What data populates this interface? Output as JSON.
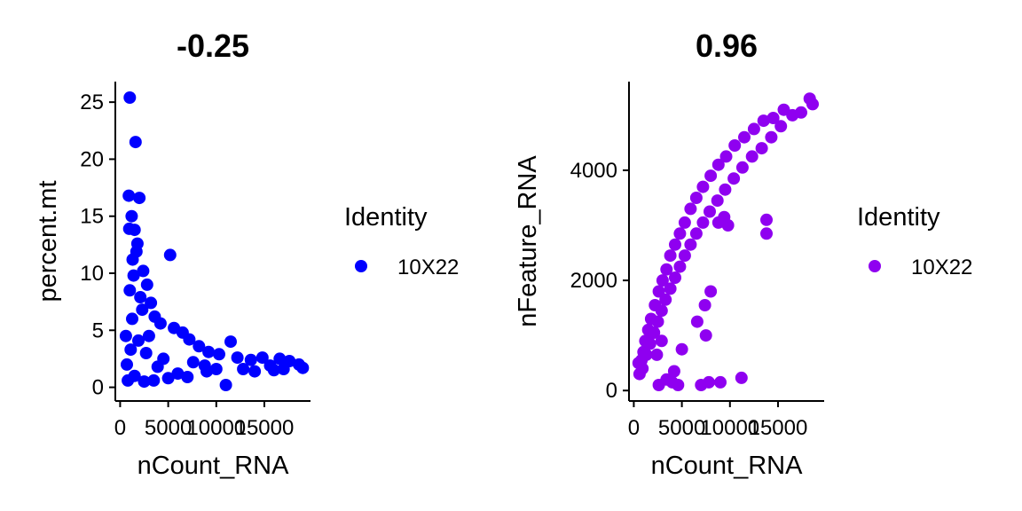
{
  "chart_data": [
    {
      "type": "scatter",
      "title": "-0.25",
      "xlabel": "nCount_RNA",
      "ylabel": "percent.mt",
      "xlim": [
        -500,
        19800
      ],
      "ylim": [
        -1.2,
        26.8
      ],
      "xticks": [
        0,
        5000,
        10000,
        15000
      ],
      "xtick_labels": [
        "0",
        "5000",
        "10000",
        "15000"
      ],
      "yticks": [
        0,
        5,
        10,
        15,
        20,
        25
      ],
      "ytick_labels": [
        "0",
        "5",
        "10",
        "15",
        "20",
        "25"
      ],
      "grid": false,
      "legend": {
        "title": "Identity",
        "placement": "right",
        "entries": [
          "10X22"
        ]
      },
      "series": [
        {
          "name": "10X22",
          "color": "#0000ff",
          "points": [
            [
              1000,
              25.4
            ],
            [
              1600,
              21.5
            ],
            [
              900,
              16.8
            ],
            [
              2000,
              16.6
            ],
            [
              1200,
              15.0
            ],
            [
              1500,
              13.8
            ],
            [
              1800,
              12.6
            ],
            [
              5200,
              11.6
            ],
            [
              1300,
              11.2
            ],
            [
              2400,
              10.2
            ],
            [
              2800,
              9.0
            ],
            [
              1000,
              8.5
            ],
            [
              3200,
              7.4
            ],
            [
              3600,
              6.2
            ],
            [
              4200,
              5.6
            ],
            [
              5600,
              5.2
            ],
            [
              2300,
              6.8
            ],
            [
              6500,
              4.8
            ],
            [
              7200,
              4.2
            ],
            [
              11500,
              4.0
            ],
            [
              8200,
              3.6
            ],
            [
              9200,
              3.1
            ],
            [
              10300,
              2.9
            ],
            [
              12200,
              2.6
            ],
            [
              13600,
              2.4
            ],
            [
              14800,
              2.6
            ],
            [
              16600,
              2.5
            ],
            [
              17600,
              2.3
            ],
            [
              18600,
              2.0
            ],
            [
              19000,
              1.7
            ],
            [
              15600,
              1.9
            ],
            [
              600,
              4.5
            ],
            [
              700,
              2.0
            ],
            [
              800,
              0.6
            ],
            [
              1500,
              1.0
            ],
            [
              2500,
              0.5
            ],
            [
              3500,
              0.6
            ],
            [
              5000,
              0.8
            ],
            [
              6000,
              1.2
            ],
            [
              7000,
              0.9
            ],
            [
              9000,
              1.4
            ],
            [
              11000,
              0.2
            ],
            [
              12800,
              1.6
            ],
            [
              14000,
              1.4
            ],
            [
              1100,
              3.3
            ],
            [
              1900,
              4.1
            ],
            [
              2700,
              3.0
            ],
            [
              4500,
              2.5
            ],
            [
              3900,
              1.8
            ],
            [
              7600,
              2.2
            ],
            [
              8800,
              1.9
            ],
            [
              10000,
              1.6
            ],
            [
              16000,
              1.5
            ],
            [
              17000,
              1.6
            ],
            [
              1400,
              9.8
            ],
            [
              2100,
              7.9
            ],
            [
              1700,
              11.9
            ],
            [
              950,
              13.9
            ],
            [
              1250,
              6.0
            ],
            [
              3000,
              4.5
            ]
          ]
        }
      ]
    },
    {
      "type": "scatter",
      "title": "0.96",
      "xlabel": "nCount_RNA",
      "ylabel": "nFeature_RNA",
      "xlim": [
        -500,
        19800
      ],
      "ylim": [
        -190,
        5610
      ],
      "xticks": [
        0,
        5000,
        10000,
        15000
      ],
      "xtick_labels": [
        "0",
        "5000",
        "10000",
        "15000"
      ],
      "yticks": [
        0,
        2000,
        4000
      ],
      "ytick_labels": [
        "0",
        "2000",
        "4000"
      ],
      "grid": false,
      "legend": {
        "title": "Identity",
        "placement": "right",
        "entries": [
          "10X22"
        ]
      },
      "series": [
        {
          "name": "10X22",
          "color": "#8f00f0",
          "points": [
            [
              800,
              550
            ],
            [
              1000,
              700
            ],
            [
              1200,
              900
            ],
            [
              1500,
              1100
            ],
            [
              1800,
              1300
            ],
            [
              2200,
              1550
            ],
            [
              2600,
              1800
            ],
            [
              3000,
              2000
            ],
            [
              3400,
              2200
            ],
            [
              3800,
              2450
            ],
            [
              4300,
              2650
            ],
            [
              4800,
              2850
            ],
            [
              5300,
              3050
            ],
            [
              5900,
              3300
            ],
            [
              6500,
              3500
            ],
            [
              7200,
              3700
            ],
            [
              8000,
              3900
            ],
            [
              8800,
              4100
            ],
            [
              9600,
              4250
            ],
            [
              10500,
              4450
            ],
            [
              11500,
              4600
            ],
            [
              12500,
              4750
            ],
            [
              13500,
              4900
            ],
            [
              14500,
              4950
            ],
            [
              15600,
              5100
            ],
            [
              16500,
              5000
            ],
            [
              17400,
              5050
            ],
            [
              18300,
              5300
            ],
            [
              18600,
              5200
            ],
            [
              900,
              400
            ],
            [
              1300,
              650
            ],
            [
              1700,
              850
            ],
            [
              2100,
              1050
            ],
            [
              2500,
              1250
            ],
            [
              2900,
              1450
            ],
            [
              3300,
              1650
            ],
            [
              3800,
              1850
            ],
            [
              4300,
              2050
            ],
            [
              4800,
              2250
            ],
            [
              5300,
              2450
            ],
            [
              5900,
              2650
            ],
            [
              6500,
              2850
            ],
            [
              7200,
              3050
            ],
            [
              7900,
              3250
            ],
            [
              8700,
              3450
            ],
            [
              9500,
              3650
            ],
            [
              10400,
              3850
            ],
            [
              11300,
              4050
            ],
            [
              12300,
              4250
            ],
            [
              13300,
              4400
            ],
            [
              14300,
              4600
            ],
            [
              15300,
              4800
            ],
            [
              2400,
              650
            ],
            [
              2600,
              100
            ],
            [
              3400,
              200
            ],
            [
              4000,
              150
            ],
            [
              4200,
              350
            ],
            [
              4600,
              100
            ],
            [
              7000,
              100
            ],
            [
              7800,
              150
            ],
            [
              9000,
              150
            ],
            [
              11200,
              230
            ],
            [
              7400,
              1550
            ],
            [
              8000,
              1800
            ],
            [
              6600,
              1250
            ],
            [
              7500,
              1000
            ],
            [
              5000,
              750
            ],
            [
              13800,
              3100
            ],
            [
              13800,
              2850
            ],
            [
              8800,
              3050
            ],
            [
              9800,
              3000
            ],
            [
              9400,
              3150
            ],
            [
              600,
              300
            ],
            [
              500,
              500
            ],
            [
              2900,
              900
            ]
          ]
        }
      ]
    }
  ]
}
